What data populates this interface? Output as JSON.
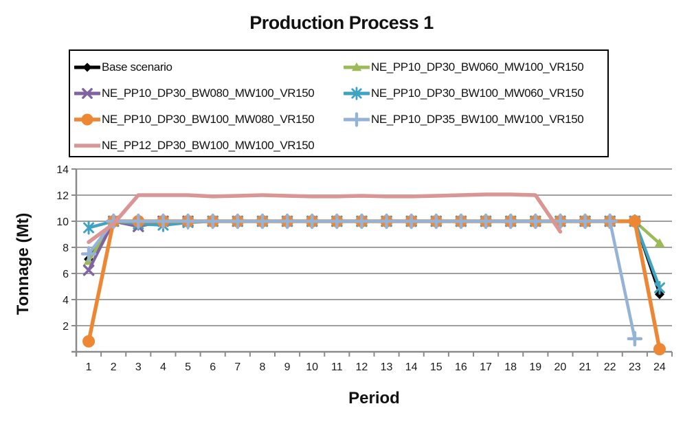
{
  "title": "Production Process 1",
  "colors": {
    "axis": "#8a8a8a",
    "grid": "#a0a0a0",
    "text": "#1a1a1a",
    "legend_border": "#000000",
    "background": "#ffffff"
  },
  "chart_data": {
    "type": "line",
    "title": "Production Process 1",
    "xlabel": "Period",
    "ylabel": "Tonnage (Mt)",
    "x": [
      1,
      2,
      3,
      4,
      5,
      6,
      7,
      8,
      9,
      10,
      11,
      12,
      13,
      14,
      15,
      16,
      17,
      18,
      19,
      20,
      21,
      22,
      23,
      24
    ],
    "ylim": [
      0,
      14
    ],
    "y_ticks": [
      2,
      4,
      6,
      8,
      10,
      12,
      14
    ],
    "grid": true,
    "legend_position": "top",
    "series": [
      {
        "name": "Base scenario",
        "color": "#000000",
        "marker": "diamond",
        "line_width": 3.5,
        "values": [
          7.1,
          10,
          10,
          10,
          10,
          10,
          10,
          10,
          10,
          10,
          10,
          10,
          10,
          10,
          10,
          10,
          10,
          10,
          10,
          10,
          10,
          10,
          10,
          4.4
        ]
      },
      {
        "name": "NE_PP10_DP30_BW060_MW100_VR150",
        "color": "#9BBB59",
        "marker": "triangle",
        "line_width": 4.5,
        "values": [
          6.95,
          10,
          10,
          10,
          10,
          10,
          10,
          10,
          10,
          10,
          10,
          10,
          10,
          10,
          10,
          10,
          10,
          10,
          10,
          10,
          10,
          10,
          10,
          8.3
        ]
      },
      {
        "name": "NE_PP10_DP30_BW080_MW100_VR150",
        "color": "#8064A2",
        "marker": "x",
        "line_width": 4.5,
        "values": [
          6.25,
          10,
          9.6,
          10,
          10,
          10,
          10,
          10,
          10,
          10,
          10,
          10,
          10,
          10,
          10,
          10,
          10,
          10,
          10,
          10,
          10,
          10,
          10,
          null
        ]
      },
      {
        "name": "NE_PP10_DP30_BW100_MW060_VR150",
        "color": "#40A3C2",
        "marker": "asterisk",
        "line_width": 4.5,
        "values": [
          9.5,
          10,
          9.8,
          9.7,
          9.9,
          10,
          10,
          10,
          10,
          10,
          10,
          10,
          10,
          10,
          10,
          10,
          10,
          10,
          10,
          10,
          10,
          10,
          10,
          4.9
        ]
      },
      {
        "name": "NE_PP10_DP30_BW100_MW080_VR150",
        "color": "#ED8733",
        "marker": "circle",
        "line_width": 5.5,
        "values": [
          0.8,
          10,
          10,
          10,
          10,
          10,
          10,
          10,
          10,
          10,
          10,
          10,
          10,
          10,
          10,
          10,
          10,
          10,
          10,
          10,
          10,
          10,
          10,
          0.2
        ]
      },
      {
        "name": "NE_PP10_DP35_BW100_MW100_VR150",
        "color": "#95B3D7",
        "marker": "plus",
        "line_width": 4.5,
        "values": [
          7.5,
          10,
          10,
          10,
          10,
          10,
          10,
          10,
          10,
          10,
          10,
          10,
          10,
          10,
          10,
          10,
          10,
          10,
          10,
          10,
          10,
          10,
          1.0,
          null
        ]
      },
      {
        "name": "NE_PP12_DP30_BW100_MW100_VR150",
        "color": "#D99694",
        "marker": "none",
        "line_width": 5.5,
        "values": [
          8.4,
          9.8,
          12,
          12,
          12,
          11.9,
          11.95,
          12,
          11.95,
          11.9,
          11.9,
          11.95,
          11.9,
          11.9,
          11.95,
          12,
          12.05,
          12.05,
          12,
          9.2,
          null,
          null,
          null,
          null
        ]
      }
    ]
  }
}
